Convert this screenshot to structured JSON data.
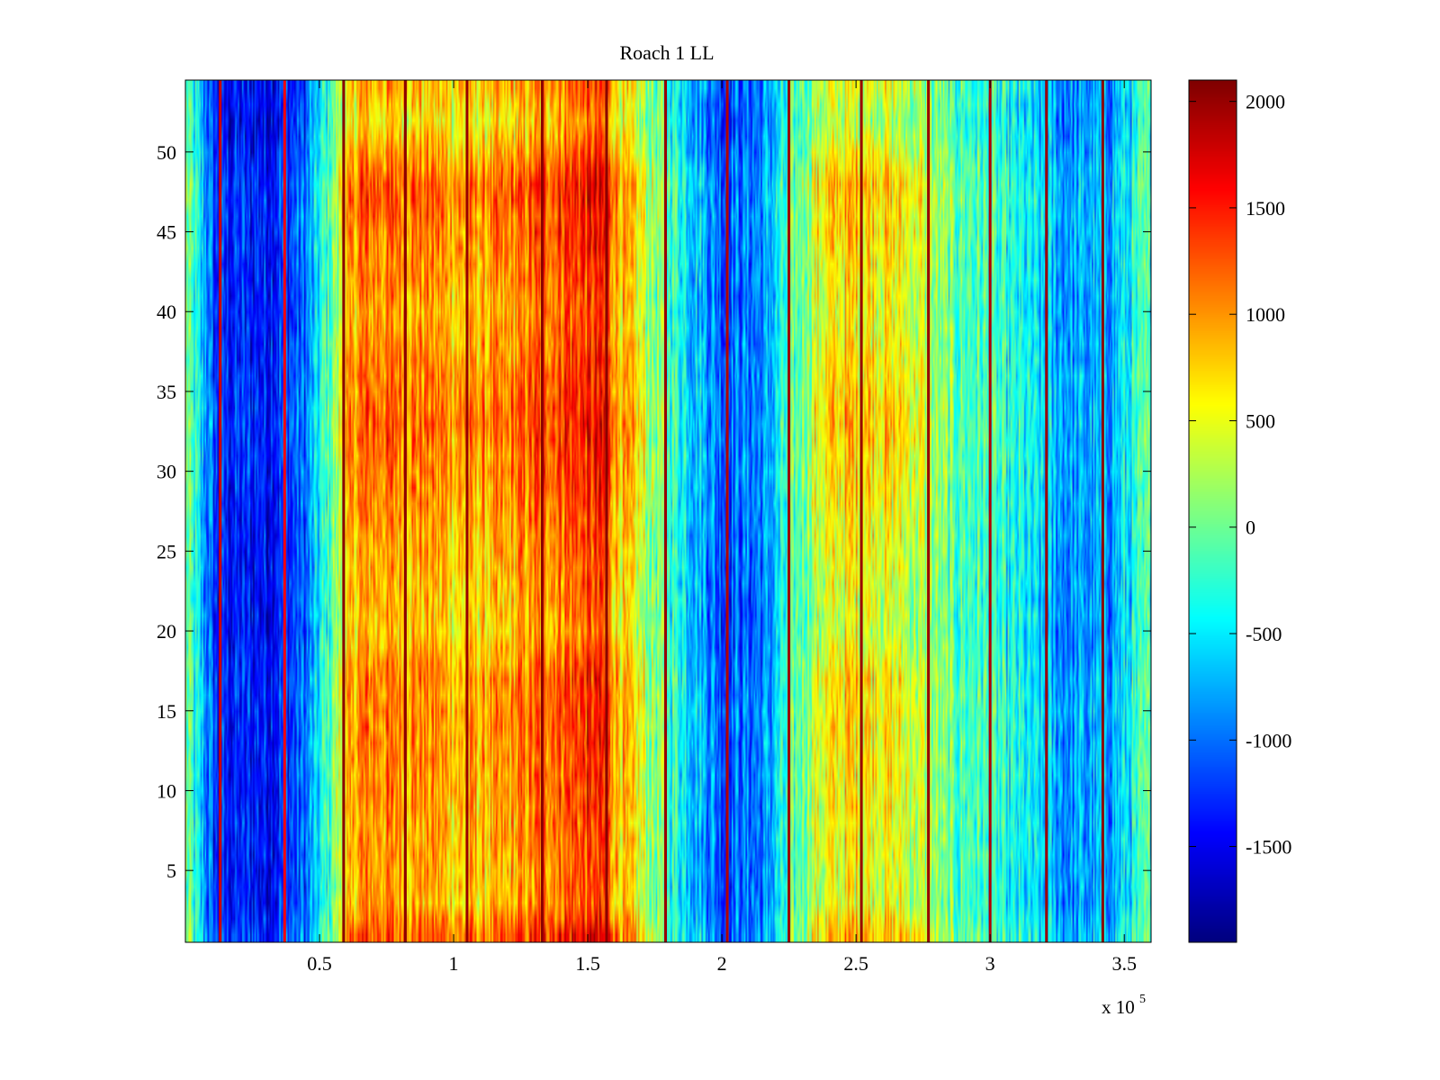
{
  "chart_data": {
    "type": "heatmap",
    "title": "Roach 1 LL",
    "xlabel": "",
    "ylabel": "",
    "x_exponent_label": {
      "base": "x 10",
      "exponent": "5"
    },
    "xlim": [
      0,
      3.6
    ],
    "ylim": [
      0.5,
      54.5
    ],
    "xticks": [
      {
        "value": 0.5,
        "label": "0.5"
      },
      {
        "value": 1,
        "label": "1"
      },
      {
        "value": 1.5,
        "label": "1.5"
      },
      {
        "value": 2,
        "label": "2"
      },
      {
        "value": 2.5,
        "label": "2.5"
      },
      {
        "value": 3,
        "label": "3"
      },
      {
        "value": 3.5,
        "label": "3.5"
      }
    ],
    "yticks": [
      {
        "value": 5,
        "label": "5"
      },
      {
        "value": 10,
        "label": "10"
      },
      {
        "value": 15,
        "label": "15"
      },
      {
        "value": 20,
        "label": "20"
      },
      {
        "value": 25,
        "label": "25"
      },
      {
        "value": 30,
        "label": "30"
      },
      {
        "value": 35,
        "label": "35"
      },
      {
        "value": 40,
        "label": "40"
      },
      {
        "value": 45,
        "label": "45"
      },
      {
        "value": 50,
        "label": "50"
      }
    ],
    "rows": 54,
    "colormap": "jet",
    "clim": [
      -1950,
      2100
    ],
    "colorbar_ticks": [
      {
        "value": 2000,
        "label": "2000"
      },
      {
        "value": 1500,
        "label": "1500"
      },
      {
        "value": 1000,
        "label": "1000"
      },
      {
        "value": 500,
        "label": "500"
      },
      {
        "value": 0,
        "label": "0"
      },
      {
        "value": -500,
        "label": "-500"
      },
      {
        "value": -1000,
        "label": "-1000"
      },
      {
        "value": -1500,
        "label": "-1500"
      }
    ],
    "column_band_profile": [
      {
        "x": 0.0,
        "value": 0
      },
      {
        "x": 0.05,
        "value": -600
      },
      {
        "x": 0.12,
        "value": -1400
      },
      {
        "x": 0.3,
        "value": -1400
      },
      {
        "x": 0.45,
        "value": -1100
      },
      {
        "x": 0.52,
        "value": -300
      },
      {
        "x": 0.6,
        "value": 500
      },
      {
        "x": 0.65,
        "value": 950
      },
      {
        "x": 0.9,
        "value": 900
      },
      {
        "x": 1.05,
        "value": 700
      },
      {
        "x": 1.2,
        "value": 800
      },
      {
        "x": 1.35,
        "value": 1100
      },
      {
        "x": 1.55,
        "value": 1300
      },
      {
        "x": 1.62,
        "value": 700
      },
      {
        "x": 1.72,
        "value": 200
      },
      {
        "x": 1.85,
        "value": -400
      },
      {
        "x": 2.0,
        "value": -1100
      },
      {
        "x": 2.15,
        "value": -1000
      },
      {
        "x": 2.25,
        "value": -300
      },
      {
        "x": 2.35,
        "value": 300
      },
      {
        "x": 2.5,
        "value": 600
      },
      {
        "x": 2.6,
        "value": 500
      },
      {
        "x": 2.75,
        "value": 200
      },
      {
        "x": 2.85,
        "value": -100
      },
      {
        "x": 3.0,
        "value": -300
      },
      {
        "x": 3.15,
        "value": -600
      },
      {
        "x": 3.3,
        "value": -900
      },
      {
        "x": 3.45,
        "value": -800
      },
      {
        "x": 3.6,
        "value": -200
      }
    ],
    "row_band_profile": [
      {
        "y": 1,
        "value": 250
      },
      {
        "y": 3,
        "value": 0
      },
      {
        "y": 10,
        "value": 80
      },
      {
        "y": 17,
        "value": 120
      },
      {
        "y": 20,
        "value": -60
      },
      {
        "y": 27,
        "value": 60
      },
      {
        "y": 33,
        "value": 200
      },
      {
        "y": 40,
        "value": 40
      },
      {
        "y": 48,
        "value": 220
      },
      {
        "y": 52,
        "value": -150
      },
      {
        "y": 54,
        "value": 0
      }
    ],
    "spike_columns": [
      {
        "x": 0.13,
        "value": 1800
      },
      {
        "x": 0.37,
        "value": 1600
      },
      {
        "x": 0.59,
        "value": 2050
      },
      {
        "x": 0.82,
        "value": 2050
      },
      {
        "x": 1.05,
        "value": 2000
      },
      {
        "x": 1.33,
        "value": 2050
      },
      {
        "x": 1.57,
        "value": 2050
      },
      {
        "x": 1.79,
        "value": 2000
      },
      {
        "x": 2.02,
        "value": 1900
      },
      {
        "x": 2.25,
        "value": 2000
      },
      {
        "x": 2.52,
        "value": 2000
      },
      {
        "x": 2.77,
        "value": 2000
      },
      {
        "x": 3.0,
        "value": 1900
      },
      {
        "x": 3.21,
        "value": 2000
      },
      {
        "x": 3.42,
        "value": 2050
      }
    ]
  }
}
